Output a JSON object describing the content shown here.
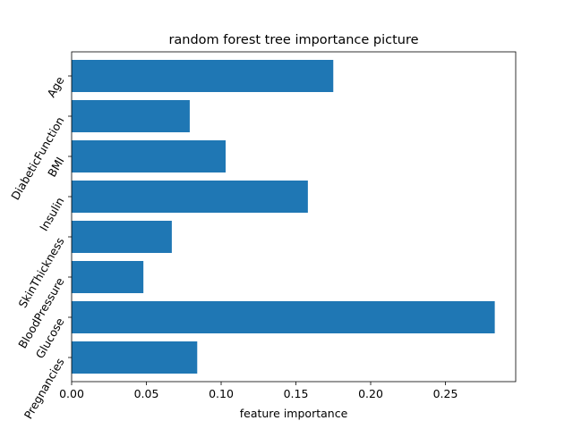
{
  "chart_data": {
    "type": "bar",
    "orientation": "horizontal",
    "title": "random forest tree importance picture",
    "xlabel": "feature importance",
    "ylabel": "",
    "categories": [
      "Pregnancies",
      "Glucose",
      "BloodPressure",
      "SkinThickness",
      "Insulin",
      "BMI",
      "DiabeticFunction",
      "Age"
    ],
    "values": [
      0.084,
      0.283,
      0.048,
      0.067,
      0.158,
      0.103,
      0.079,
      0.175
    ],
    "xlim": [
      0.0,
      0.297
    ],
    "xticks": [
      0.0,
      0.05,
      0.1,
      0.15,
      0.2,
      0.25
    ],
    "xtick_labels": [
      "0.00",
      "0.05",
      "0.10",
      "0.15",
      "0.20",
      "0.25"
    ],
    "grid": false,
    "bar_color": "#1f77b4"
  }
}
